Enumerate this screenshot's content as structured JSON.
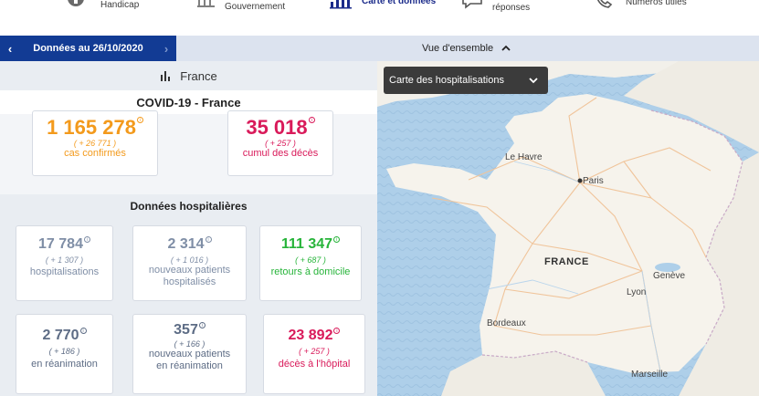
{
  "nav": {
    "items": [
      {
        "label": "Handicap",
        "icon": "accessibility-icon"
      },
      {
        "label": "Gouvernement",
        "icon": "building-icon"
      },
      {
        "label": "Carte et données",
        "icon": "bar-chart-icon",
        "active": true
      },
      {
        "label": "réponses",
        "icon": "chat-icon"
      },
      {
        "label": "Numéros utiles",
        "icon": "phone-icon"
      }
    ]
  },
  "date_bar": {
    "date_label": "Données au 26/10/2020",
    "prev_icon": "chevron-left-icon",
    "next_icon": "chevron-right-icon",
    "overview_label": "Vue d'ensemble",
    "overview_icon": "chevron-up-icon"
  },
  "panel": {
    "country": "France",
    "title": "COVID-19 - France",
    "top_cards": [
      {
        "value": "1 165 278",
        "delta": "( + 26 771 )",
        "label": "cas confirmés",
        "color": "#f39a1c"
      },
      {
        "value": "35 018",
        "delta": "( + 257 )",
        "label": "cumul des décès",
        "color": "#d91a5a"
      }
    ],
    "hospital_title": "Données hospitalières",
    "hospital_cards": [
      {
        "value": "17 784",
        "delta": "( + 1 307 )",
        "label": "hospitalisations",
        "color": "#7f8ea6"
      },
      {
        "value": "2 314",
        "delta": "( + 1 016 )",
        "label": "nouveaux patients hospitalisés",
        "color": "#7f8ea6"
      },
      {
        "value": "111 347",
        "delta": "( + 687 )",
        "label": "retours à domicile",
        "color": "#27b43a"
      },
      {
        "value": "2 770",
        "delta": "( + 186 )",
        "label": "en réanimation",
        "color": "#5d6c85"
      },
      {
        "value": "357",
        "delta": "( + 166 )",
        "label": "nouveaux patients en réanimation",
        "color": "#5d6c85"
      },
      {
        "value": "23 892",
        "delta": "( + 257 )",
        "label": "décès à l'hôpital",
        "color": "#d91a5a"
      }
    ]
  },
  "map": {
    "selector_label": "Carte des hospitalisations",
    "country_label": "FRANCE",
    "cities": [
      "Le Havre",
      "Paris",
      "Genève",
      "Lyon",
      "Bordeaux",
      "Marseille"
    ],
    "colors": {
      "sea": "#aecfe9",
      "land": "#f5f2ec",
      "roads": "#f0c49a"
    }
  }
}
